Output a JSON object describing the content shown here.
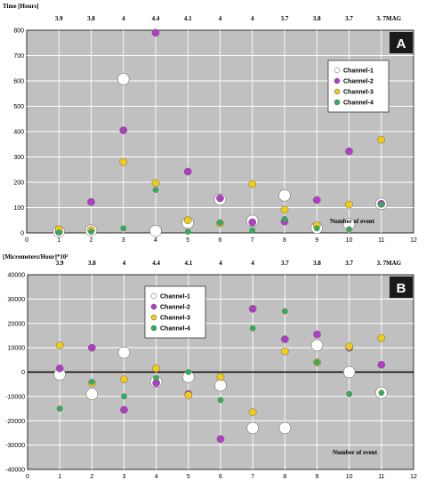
{
  "colors": {
    "plot_bg": "#c0c0c0",
    "grid": "#ffffff",
    "channel_1": "#ffffff",
    "channel_2": "#b23cc8",
    "channel_3": "#f2cc14",
    "channel_4": "#2fb058",
    "badge_bg": "#1a1a1a",
    "badge_text": "#ffffff"
  },
  "chart_data": [
    {
      "type": "scatter",
      "panel": "A",
      "ylabel": "Time [Hours]",
      "xlabel": "Number of event",
      "magnitude_label": "MAG",
      "magnitudes": [
        "3.9",
        "3.8",
        "4",
        "4.4",
        "4.1",
        "4",
        "4",
        "3.7",
        "3.8",
        "3.7",
        "3. 7"
      ],
      "xlim": [
        0,
        12
      ],
      "ylim": [
        0,
        800
      ],
      "xticks": [
        "0",
        "1",
        "2",
        "3",
        "4",
        "5",
        "6",
        "7",
        "8",
        "9",
        "10",
        "11",
        "12"
      ],
      "yticks": [
        "0",
        "100",
        "200",
        "300",
        "400",
        "500",
        "600",
        "700",
        "800"
      ],
      "grid": true,
      "legend_position": "right",
      "x": [
        1,
        2,
        3,
        4,
        5,
        6,
        7,
        8,
        9,
        10,
        11
      ],
      "series": [
        {
          "name": "Channel-1",
          "color": "#ffffff",
          "size": 10,
          "values": [
            5,
            10,
            607,
            8,
            40,
            132,
            48,
            148,
            20,
            35,
            115
          ]
        },
        {
          "name": "Channel-2",
          "color": "#b23cc8",
          "size": 7,
          "values": [
            5,
            122,
            405,
            790,
            242,
            137,
            42,
            45,
            130,
            322,
            115
          ]
        },
        {
          "name": "Channel-3",
          "color": "#f2cc14",
          "size": 7,
          "values": [
            15,
            12,
            280,
            197,
            50,
            38,
            193,
            92,
            30,
            112,
            368
          ]
        },
        {
          "name": "Channel-4",
          "color": "#2fb058",
          "size": 5,
          "values": [
            2,
            5,
            18,
            170,
            5,
            40,
            10,
            55,
            18,
            15,
            112
          ]
        }
      ]
    },
    {
      "type": "scatter",
      "panel": "B",
      "ylabel": "[Micrometers/Hour]*10³",
      "xlabel": "Number of event",
      "magnitude_label": "MAG",
      "magnitudes": [
        "3.9",
        "3.8",
        "4",
        "4.4",
        "4.1",
        "4",
        "4",
        "3.7",
        "3.8",
        "3.7",
        "3. 7"
      ],
      "xlim": [
        0,
        12
      ],
      "ylim": [
        -40000,
        40000
      ],
      "xticks": [
        "0",
        "1",
        "2",
        "3",
        "4",
        "5",
        "6",
        "7",
        "8",
        "9",
        "10",
        "11",
        "12"
      ],
      "yticks": [
        "-40000",
        "-30000",
        "-20000",
        "-10000",
        "0",
        "10000",
        "20000",
        "30000",
        "40000"
      ],
      "grid": true,
      "zero_line": true,
      "legend_position": "top-center",
      "x": [
        1,
        2,
        3,
        4,
        5,
        6,
        7,
        8,
        9,
        10,
        11
      ],
      "series": [
        {
          "name": "Channel-1",
          "color": "#ffffff",
          "size": 10,
          "values": [
            -1000,
            -9000,
            8000,
            -4000,
            -2000,
            -5500,
            -23000,
            -23000,
            11000,
            0,
            -8500
          ]
        },
        {
          "name": "Channel-2",
          "color": "#b23cc8",
          "size": 7,
          "values": [
            1500,
            10000,
            -15500,
            -4500,
            -9000,
            -27500,
            26000,
            13500,
            15500,
            10000,
            3000
          ]
        },
        {
          "name": "Channel-3",
          "color": "#f2cc14",
          "size": 7,
          "values": [
            11000,
            -4500,
            -3000,
            1500,
            -9500,
            -2000,
            -16500,
            8500,
            4000,
            10500,
            14000
          ]
        },
        {
          "name": "Channel-4",
          "color": "#2fb058",
          "size": 5,
          "values": [
            -15000,
            -4000,
            -10000,
            -2500,
            0,
            -11500,
            18000,
            25000,
            4000,
            -9000,
            -8500
          ]
        }
      ]
    }
  ]
}
